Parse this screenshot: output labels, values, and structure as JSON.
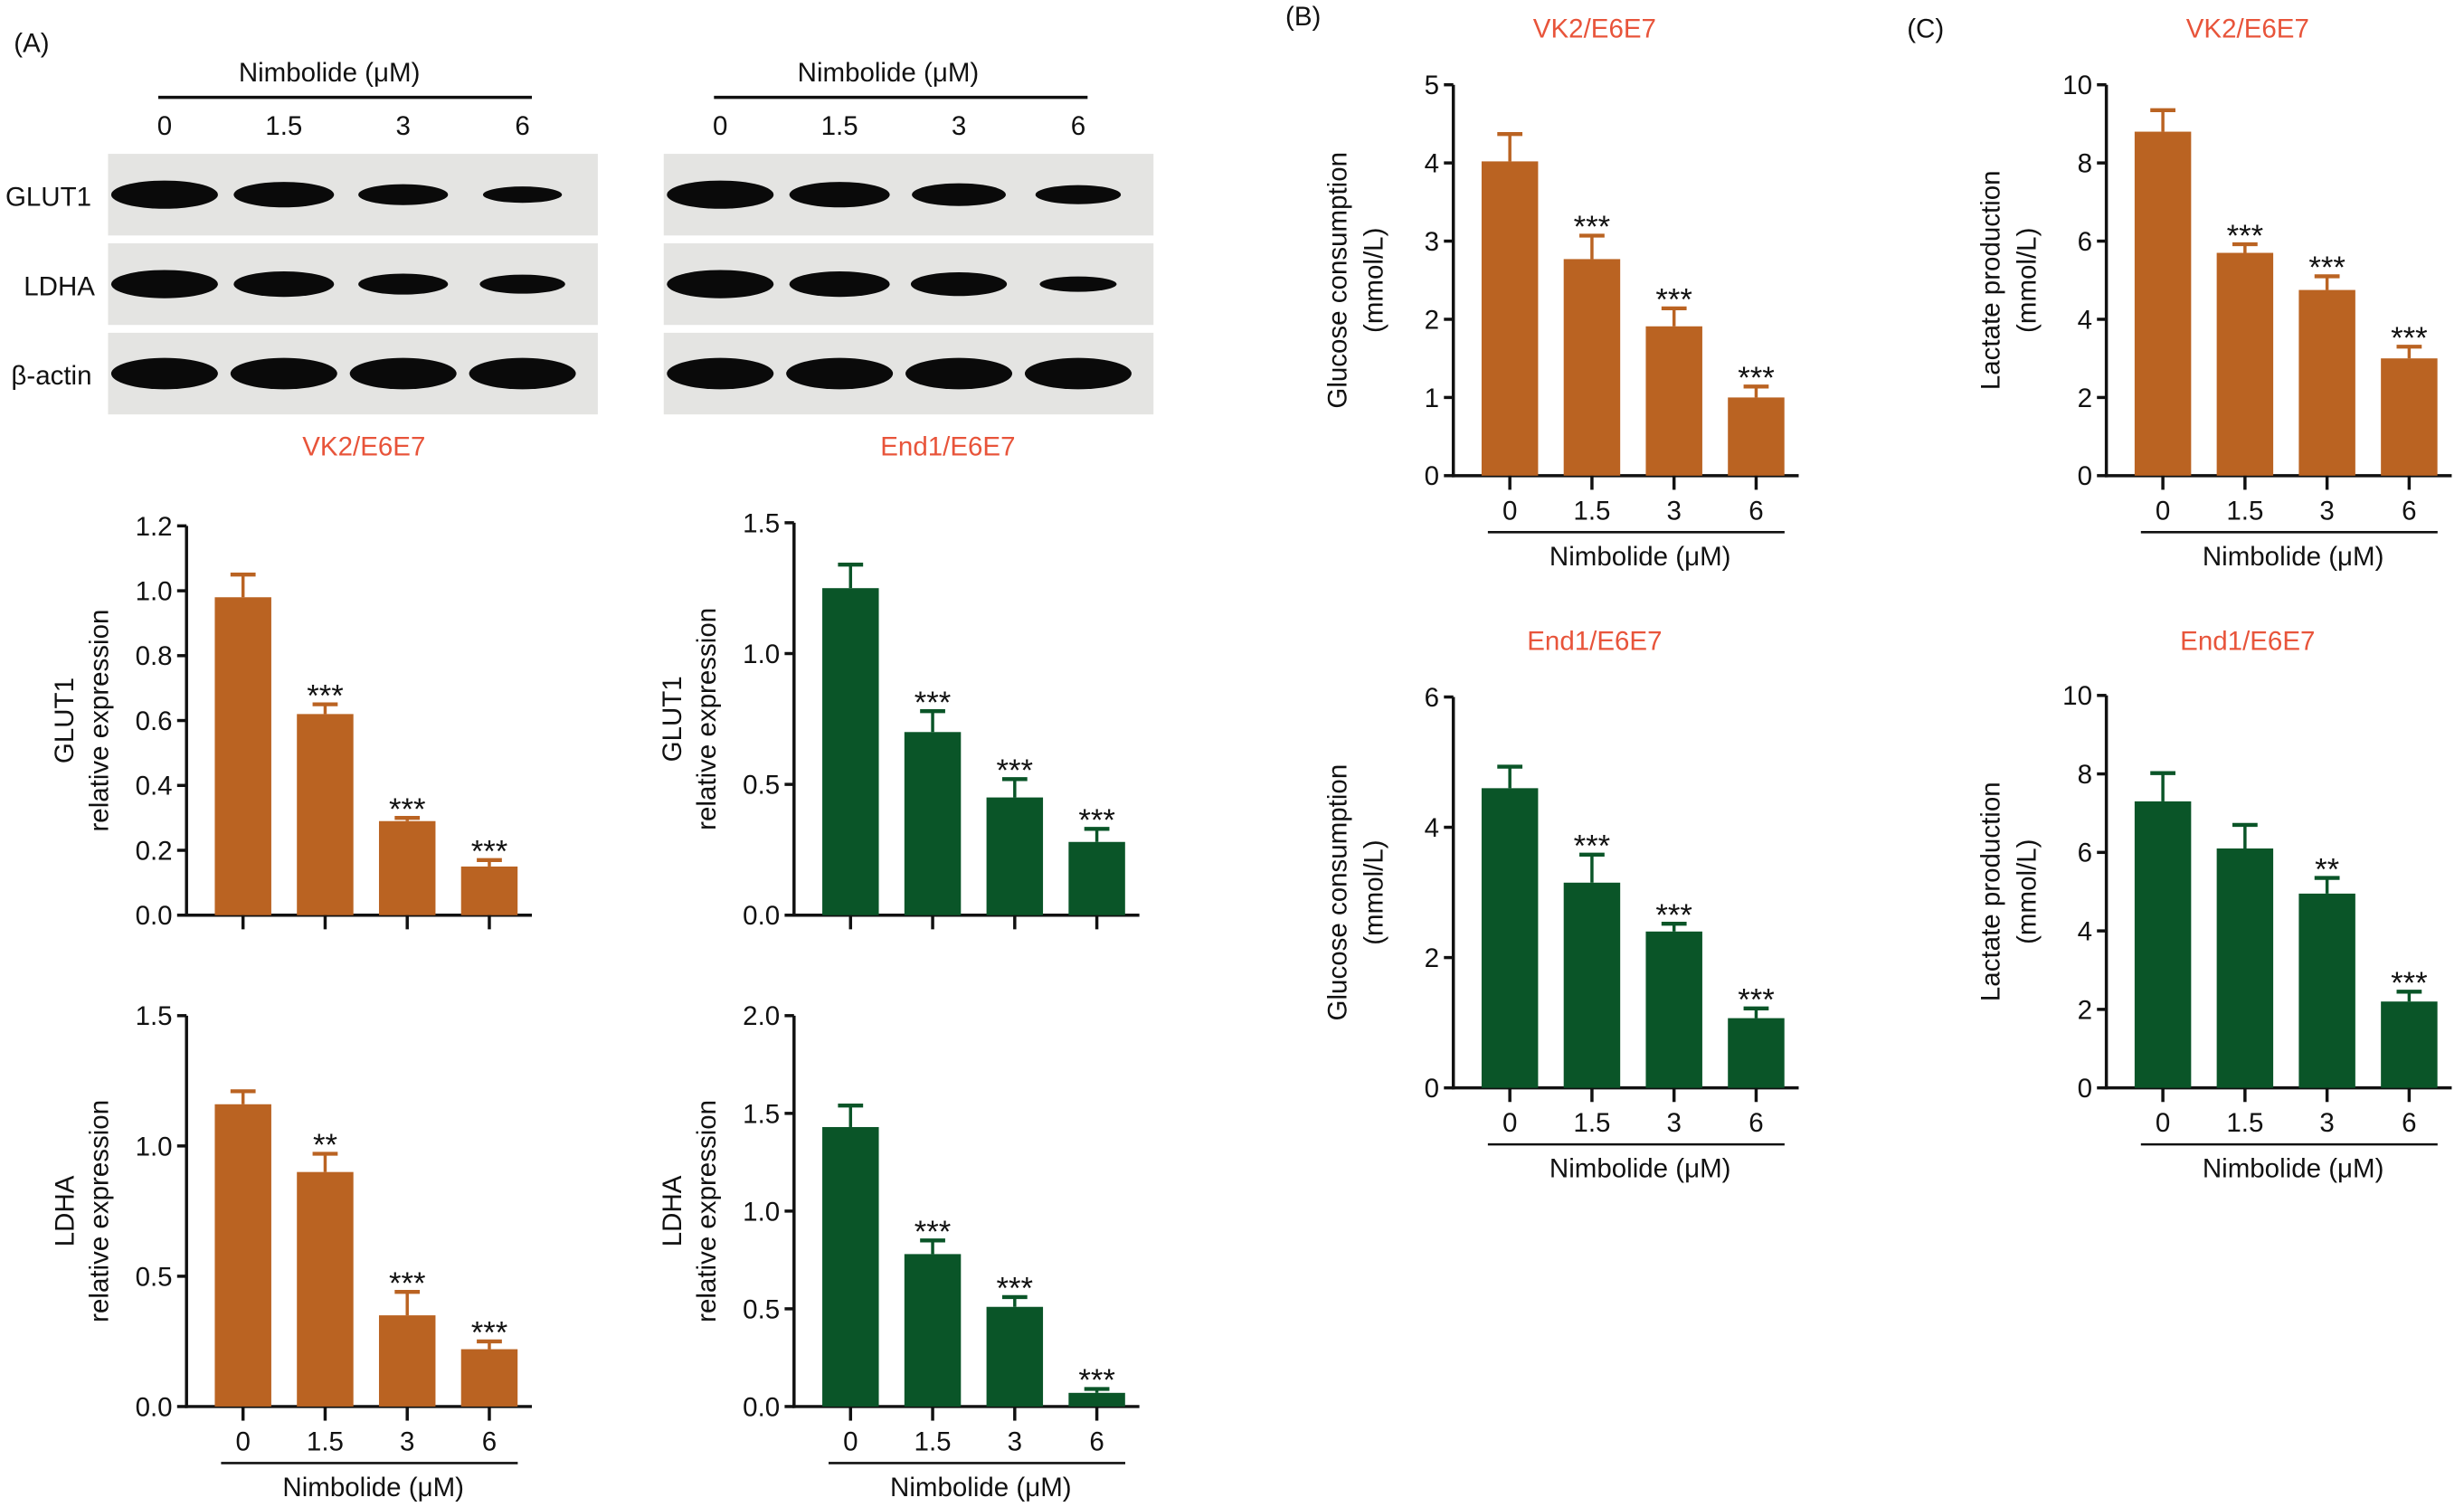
{
  "panel_labels": {
    "a": "(A)",
    "b": "(B)",
    "c": "(C)"
  },
  "blots": {
    "treatment_label": "Nimbolide (μM)",
    "lanes": [
      "0",
      "1.5",
      "3",
      "6"
    ],
    "rows": [
      "GLUT1",
      "LDHA",
      "β-actin"
    ],
    "cells": [
      {
        "name": "VK2/E6E7",
        "band_intensity": [
          [
            1.0,
            0.85,
            0.6,
            0.35
          ],
          [
            1.0,
            0.85,
            0.6,
            0.5
          ],
          [
            1.0,
            1.0,
            1.0,
            1.0
          ]
        ]
      },
      {
        "name": "End1/E6E7",
        "band_intensity": [
          [
            1.0,
            0.85,
            0.7,
            0.5
          ],
          [
            1.0,
            0.85,
            0.75,
            0.3
          ],
          [
            1.0,
            1.0,
            1.0,
            1.0
          ]
        ]
      }
    ]
  },
  "colors": {
    "vk2": "#BA6322",
    "end1": "#0A5528",
    "title": "#E8543A"
  },
  "chart_data": [
    {
      "id": "a-glut1-vk2",
      "type": "bar",
      "title": "",
      "ylabel": [
        "GLUT1",
        "relative expression"
      ],
      "xlabel": "",
      "categories": [
        "0",
        "1.5",
        "3",
        "6"
      ],
      "show_xticklabels": false,
      "ylim": [
        0,
        1.2
      ],
      "yticks": [
        "0.0",
        "0.2",
        "0.4",
        "0.6",
        "0.8",
        "1.0",
        "1.2"
      ],
      "values": [
        0.98,
        0.62,
        0.29,
        0.15
      ],
      "errors": [
        0.07,
        0.03,
        0.01,
        0.02
      ],
      "significance": [
        "",
        "***",
        "***",
        "***"
      ],
      "color": "#BA6322"
    },
    {
      "id": "a-glut1-end1",
      "type": "bar",
      "title": "",
      "ylabel": [
        "GLUT1",
        "relative expression"
      ],
      "xlabel": "",
      "categories": [
        "0",
        "1.5",
        "3",
        "6"
      ],
      "show_xticklabels": false,
      "ylim": [
        0,
        1.5
      ],
      "yticks": [
        "0.0",
        "0.5",
        "1.0",
        "1.5"
      ],
      "values": [
        1.25,
        0.7,
        0.45,
        0.28
      ],
      "errors": [
        0.09,
        0.08,
        0.07,
        0.05
      ],
      "significance": [
        "",
        "***",
        "***",
        "***"
      ],
      "color": "#0A5528"
    },
    {
      "id": "a-ldha-vk2",
      "type": "bar",
      "title": "",
      "ylabel": [
        "LDHA",
        "relative expression"
      ],
      "xlabel": "Nimbolide (μM)",
      "categories": [
        "0",
        "1.5",
        "3",
        "6"
      ],
      "show_xticklabels": true,
      "ylim": [
        0,
        1.5
      ],
      "yticks": [
        "0.0",
        "0.5",
        "1.0",
        "1.5"
      ],
      "values": [
        1.16,
        0.9,
        0.35,
        0.22
      ],
      "errors": [
        0.05,
        0.07,
        0.09,
        0.03
      ],
      "significance": [
        "",
        "**",
        "***",
        "***"
      ],
      "color": "#BA6322"
    },
    {
      "id": "a-ldha-end1",
      "type": "bar",
      "title": "",
      "ylabel": [
        "LDHA",
        "relative expression"
      ],
      "xlabel": "Nimbolide (μM)",
      "categories": [
        "0",
        "1.5",
        "3",
        "6"
      ],
      "show_xticklabels": true,
      "ylim": [
        0,
        2.0
      ],
      "yticks": [
        "0.0",
        "0.5",
        "1.0",
        "1.5",
        "2.0"
      ],
      "values": [
        1.43,
        0.78,
        0.51,
        0.07
      ],
      "errors": [
        0.11,
        0.07,
        0.05,
        0.02
      ],
      "significance": [
        "",
        "***",
        "***",
        "***"
      ],
      "color": "#0A5528"
    },
    {
      "id": "b-vk2",
      "type": "bar",
      "title": "VK2/E6E7",
      "ylabel": [
        "Glucose consumption",
        "(mmol/L)"
      ],
      "xlabel": "Nimbolide (μM)",
      "categories": [
        "0",
        "1.5",
        "3",
        "6"
      ],
      "show_xticklabels": true,
      "ylim": [
        0,
        5
      ],
      "yticks": [
        "0",
        "1",
        "2",
        "3",
        "4",
        "5"
      ],
      "values": [
        4.02,
        2.77,
        1.91,
        1.0
      ],
      "errors": [
        0.35,
        0.3,
        0.23,
        0.14
      ],
      "significance": [
        "",
        "***",
        "***",
        "***"
      ],
      "color": "#BA6322"
    },
    {
      "id": "b-end1",
      "type": "bar",
      "title": "End1/E6E7",
      "ylabel": [
        "Glucose consumption",
        "(mmol/L)"
      ],
      "xlabel": "Nimbolide (μM)",
      "categories": [
        "0",
        "1.5",
        "3",
        "6"
      ],
      "show_xticklabels": true,
      "ylim": [
        0,
        6
      ],
      "yticks": [
        "0",
        "2",
        "4",
        "6"
      ],
      "values": [
        4.6,
        3.15,
        2.4,
        1.07
      ],
      "errors": [
        0.33,
        0.43,
        0.12,
        0.15
      ],
      "significance": [
        "",
        "***",
        "***",
        "***"
      ],
      "color": "#0A5528"
    },
    {
      "id": "c-vk2",
      "type": "bar",
      "title": "VK2/E6E7",
      "ylabel": [
        "Lactate production",
        "(mmol/L)"
      ],
      "xlabel": "Nimbolide (μM)",
      "categories": [
        "0",
        "1.5",
        "3",
        "6"
      ],
      "show_xticklabels": true,
      "ylim": [
        0,
        10
      ],
      "yticks": [
        "0",
        "2",
        "4",
        "6",
        "8",
        "10"
      ],
      "values": [
        8.8,
        5.7,
        4.75,
        3.0
      ],
      "errors": [
        0.55,
        0.22,
        0.35,
        0.3
      ],
      "significance": [
        "",
        "***",
        "***",
        "***"
      ],
      "color": "#BA6322"
    },
    {
      "id": "c-end1",
      "type": "bar",
      "title": "End1/E6E7",
      "ylabel": [
        "Lactate production",
        "(mmol/L)"
      ],
      "xlabel": "Nimbolide (μM)",
      "categories": [
        "0",
        "1.5",
        "3",
        "6"
      ],
      "show_xticklabels": true,
      "ylim": [
        0,
        10
      ],
      "yticks": [
        "0",
        "2",
        "4",
        "6",
        "8",
        "10"
      ],
      "values": [
        7.3,
        6.1,
        4.95,
        2.2
      ],
      "errors": [
        0.72,
        0.6,
        0.4,
        0.25
      ],
      "significance": [
        "",
        "",
        "**",
        "***"
      ],
      "color": "#0A5528"
    }
  ]
}
